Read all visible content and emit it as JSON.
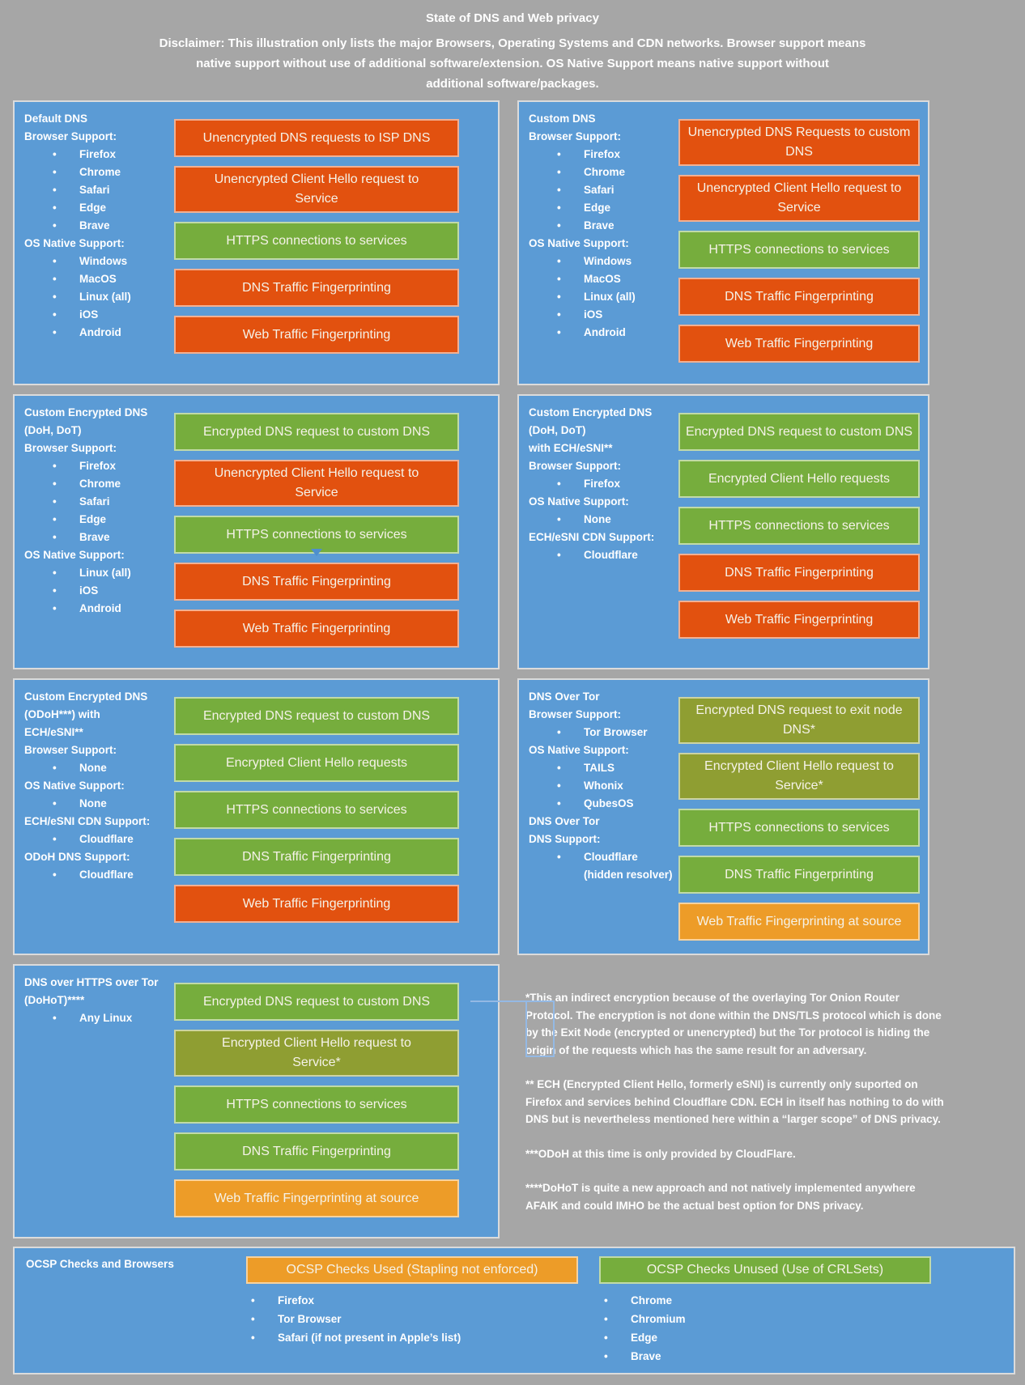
{
  "header": {
    "title": "State of DNS and Web privacy",
    "disclaimer": "Disclaimer: This illustration only lists the major Browsers, Operating Systems and CDN networks. Browser support means\nnative support without use of additional software/extension. OS Native Support means native support without\nadditional software/packages."
  },
  "status_colors": {
    "bad": "#E2510F",
    "good": "#76AD3D",
    "indirect": "#8F9E32",
    "partial": "#ED9C28",
    "panel_blue": "#5B9BD5",
    "background": "#A6A6A6"
  },
  "panels": [
    {
      "id": "default-dns",
      "title": "Default DNS",
      "sections": [
        {
          "label": "Browser Support:",
          "items": [
            "Firefox",
            "Chrome",
            "Safari",
            "Edge",
            "Brave"
          ]
        },
        {
          "label": "OS Native Support:",
          "items": [
            "Windows",
            "MacOS",
            "Linux (all)",
            "iOS",
            "Android"
          ]
        }
      ],
      "boxes": [
        {
          "text": "Unencrypted DNS requests to ISP DNS",
          "status": "bad"
        },
        {
          "text": "Unencrypted Client Hello request to\nService",
          "status": "bad"
        },
        {
          "text": "HTTPS connections to services",
          "status": "good"
        },
        {
          "text": "DNS Traffic Fingerprinting",
          "status": "bad"
        },
        {
          "text": "Web Traffic Fingerprinting",
          "status": "bad"
        }
      ]
    },
    {
      "id": "custom-dns",
      "title": "Custom DNS",
      "sections": [
        {
          "label": "Browser Support:",
          "items": [
            "Firefox",
            "Chrome",
            "Safari",
            "Edge",
            "Brave"
          ]
        },
        {
          "label": "OS Native Support:",
          "items": [
            "Windows",
            "MacOS",
            "Linux (all)",
            "iOS",
            "Android"
          ]
        }
      ],
      "boxes": [
        {
          "text": "Unencrypted DNS Requests to custom\nDNS",
          "status": "bad"
        },
        {
          "text": "Unencrypted Client Hello request to\nService",
          "status": "bad"
        },
        {
          "text": "HTTPS connections to services",
          "status": "good"
        },
        {
          "text": "DNS Traffic Fingerprinting",
          "status": "bad"
        },
        {
          "text": "Web Traffic Fingerprinting",
          "status": "bad"
        }
      ]
    },
    {
      "id": "custom-encrypted-dns",
      "title": "Custom Encrypted DNS\n(DoH, DoT)",
      "sections": [
        {
          "label": "Browser Support:",
          "items": [
            "Firefox",
            "Chrome",
            "Safari",
            "Edge",
            "Brave"
          ]
        },
        {
          "label": "OS Native Support:",
          "items": [
            "Linux (all)",
            "iOS",
            "Android"
          ]
        }
      ],
      "boxes": [
        {
          "text": "Encrypted DNS request to custom DNS",
          "status": "good"
        },
        {
          "text": "Unencrypted Client Hello request to\nService",
          "status": "bad"
        },
        {
          "text": "HTTPS connections to services",
          "status": "good"
        },
        {
          "text": "DNS Traffic Fingerprinting",
          "status": "bad"
        },
        {
          "text": "Web Traffic Fingerprinting",
          "status": "bad"
        }
      ]
    },
    {
      "id": "custom-encrypted-dns-ech",
      "title": "Custom Encrypted DNS\n(DoH, DoT)\nwith ECH/eSNI**",
      "sections": [
        {
          "label": "Browser Support:",
          "items": [
            "Firefox"
          ]
        },
        {
          "label": "OS Native Support:",
          "items": [
            "None"
          ]
        },
        {
          "label": "ECH/eSNI CDN Support:",
          "items": [
            "Cloudflare"
          ]
        }
      ],
      "boxes": [
        {
          "text": "Encrypted DNS request to custom DNS",
          "status": "good"
        },
        {
          "text": "Encrypted Client Hello requests",
          "status": "good"
        },
        {
          "text": "HTTPS connections to services",
          "status": "good"
        },
        {
          "text": "DNS Traffic Fingerprinting",
          "status": "bad"
        },
        {
          "text": "Web Traffic Fingerprinting",
          "status": "bad"
        }
      ]
    },
    {
      "id": "custom-encrypted-dns-odoh",
      "title": "Custom Encrypted DNS\n(ODoH***) with\nECH/eSNI**",
      "sections": [
        {
          "label": "Browser Support:",
          "items": [
            "None"
          ]
        },
        {
          "label": "OS Native Support:",
          "items": [
            "None"
          ]
        },
        {
          "label": "ECH/eSNI CDN Support:",
          "items": [
            "Cloudflare"
          ]
        },
        {
          "label": "ODoH DNS Support:",
          "items": [
            "Cloudflare"
          ]
        }
      ],
      "boxes": [
        {
          "text": "Encrypted DNS request to custom DNS",
          "status": "good"
        },
        {
          "text": "Encrypted Client Hello requests",
          "status": "good"
        },
        {
          "text": "HTTPS connections to services",
          "status": "good"
        },
        {
          "text": "DNS Traffic Fingerprinting",
          "status": "good"
        },
        {
          "text": "Web Traffic Fingerprinting",
          "status": "bad"
        }
      ]
    },
    {
      "id": "dns-over-tor",
      "title": "DNS Over Tor",
      "sections": [
        {
          "label": "Browser Support:",
          "items": [
            "Tor Browser"
          ]
        },
        {
          "label": "OS Native Support:",
          "items": [
            "TAILS",
            "Whonix",
            "QubesOS"
          ]
        },
        {
          "label": "DNS Over Tor\nDNS Support:",
          "items": [
            "Cloudflare\n(hidden resolver)"
          ]
        }
      ],
      "boxes": [
        {
          "text": "Encrypted DNS request to exit node\nDNS*",
          "status": "indirect"
        },
        {
          "text": "Encrypted Client Hello request to\nService*",
          "status": "indirect"
        },
        {
          "text": "HTTPS connections to services",
          "status": "good"
        },
        {
          "text": "DNS Traffic Fingerprinting",
          "status": "good"
        },
        {
          "text": "Web Traffic Fingerprinting at source",
          "status": "partial"
        }
      ]
    },
    {
      "id": "dohot",
      "title": "DNS over HTTPS over Tor\n(DoHoT)****",
      "sections": [
        {
          "label": "",
          "items": [
            "Any Linux"
          ]
        }
      ],
      "boxes": [
        {
          "text": "Encrypted DNS request to custom DNS",
          "status": "good"
        },
        {
          "text": "Encrypted Client Hello request to\nService*",
          "status": "indirect"
        },
        {
          "text": "HTTPS connections to services",
          "status": "good"
        },
        {
          "text": "DNS Traffic Fingerprinting",
          "status": "good"
        },
        {
          "text": "Web Traffic Fingerprinting at source",
          "status": "partial"
        }
      ]
    }
  ],
  "footnotes": [
    "*This an indirect encryption because of the overlaying Tor Onion Router\nProtocol. The encryption is not done within the DNS/TLS protocol which is done\nby the Exit Node (encrypted or unencrypted) but the Tor protocol is hiding the\norigin of the requests which has the same result for an adversary.",
    "** ECH (Encrypted Client Hello, formerly eSNI) is currently only suported on\nFirefox and services behind Cloudflare CDN. ECH in itself has nothing to do with\nDNS but is nevertheless mentioned here within a “larger scope” of DNS privacy.",
    "***ODoH at this time is only provided by CloudFlare.",
    "****DoHoT is quite a new approach and not natively implemented anywhere\nAFAIK and could IMHO be the actual best option for DNS privacy."
  ],
  "ocsp": {
    "title": "OCSP Checks and Browsers",
    "groups": [
      {
        "header": "OCSP Checks Used (Stapling not enforced)",
        "status": "partial",
        "items": [
          "Firefox",
          "Tor Browser",
          "Safari (if not present in Apple’s list)"
        ]
      },
      {
        "header": "OCSP Checks Unused (Use of CRLSets)",
        "status": "good",
        "items": [
          "Chrome",
          "Chromium",
          "Edge",
          "Brave"
        ]
      }
    ]
  }
}
